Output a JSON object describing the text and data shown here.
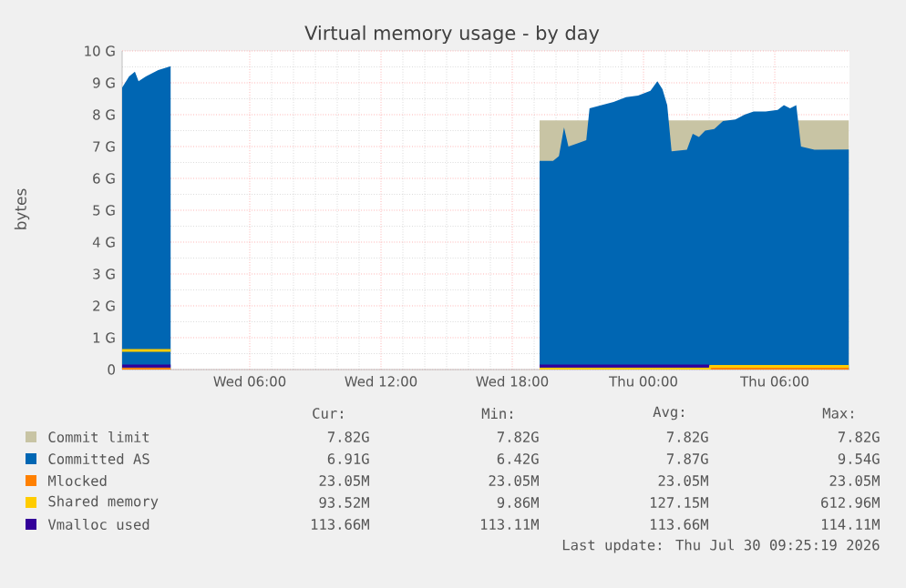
{
  "chart_data": {
    "type": "area",
    "title": "Virtual memory usage - by day",
    "ylabel": "bytes",
    "xlim": [
      "2026-07-29T00:10",
      "2026-07-30T09:25"
    ],
    "ylim": [
      0,
      10
    ],
    "xticks": [
      {
        "value": "2026-07-29T06:00",
        "label": "Wed 06:00"
      },
      {
        "value": "2026-07-29T12:00",
        "label": "Wed 12:00"
      },
      {
        "value": "2026-07-29T18:00",
        "label": "Wed 18:00"
      },
      {
        "value": "2026-07-30T00:00",
        "label": "Thu 00:00"
      },
      {
        "value": "2026-07-30T06:00",
        "label": "Thu 06:00"
      }
    ],
    "yticks": [
      0,
      {
        "value": 1,
        "label": "1 G"
      },
      {
        "value": 2,
        "label": "2 G"
      },
      {
        "value": 3,
        "label": "3 G"
      },
      {
        "value": 4,
        "label": "4 G"
      },
      {
        "value": 5,
        "label": "5 G"
      },
      {
        "value": 6,
        "label": "6 G"
      },
      {
        "value": 7,
        "label": "7 G"
      },
      {
        "value": 8,
        "label": "8 G"
      },
      {
        "value": 9,
        "label": "9 G"
      },
      {
        "value": 10,
        "label": "10 G"
      }
    ],
    "grid": true,
    "legend": "bottom",
    "series": [
      {
        "name": "Commit limit",
        "color": "#c8c4a4",
        "x": [
          "2026-07-29T19:15",
          "2026-07-30T09:23"
        ],
        "values": [
          7.82,
          7.82
        ]
      },
      {
        "name": "Committed AS",
        "color": "#0066b3",
        "x": [
          "2026-07-29T00:10",
          "2026-07-29T00:29",
          "2026-07-29T00:45",
          "2026-07-29T00:55",
          "2026-07-29T01:15",
          "2026-07-29T01:49",
          "2026-07-29T02:23",
          "2026-07-29T10:00",
          "2026-07-29T19:15",
          "2026-07-29T19:52",
          "2026-07-29T20:08",
          "2026-07-29T20:22",
          "2026-07-29T20:34",
          "2026-07-29T20:59",
          "2026-07-29T21:23",
          "2026-07-29T21:32",
          "2026-07-29T22:05",
          "2026-07-29T22:38",
          "2026-07-29T23:12",
          "2026-07-29T23:45",
          "2026-07-30T00:19",
          "2026-07-30T00:38",
          "2026-07-30T00:52",
          "2026-07-30T01:05",
          "2026-07-30T01:17",
          "2026-07-30T01:59",
          "2026-07-30T02:15",
          "2026-07-30T02:32",
          "2026-07-30T02:49",
          "2026-07-30T03:14",
          "2026-07-30T03:38",
          "2026-07-30T04:12",
          "2026-07-30T04:37",
          "2026-07-30T05:02",
          "2026-07-30T05:35",
          "2026-07-30T06:08",
          "2026-07-30T06:25",
          "2026-07-30T06:42",
          "2026-07-30T06:59",
          "2026-07-30T07:12",
          "2026-07-30T07:49",
          "2026-07-30T09:23"
        ],
        "values": [
          8.85,
          9.2,
          9.35,
          9.05,
          9.2,
          9.4,
          9.52,
          null,
          6.55,
          6.55,
          6.7,
          7.6,
          7.0,
          7.1,
          7.2,
          8.2,
          8.3,
          8.4,
          8.55,
          8.6,
          8.75,
          9.05,
          8.8,
          8.3,
          6.85,
          6.9,
          7.4,
          7.3,
          7.5,
          7.55,
          7.8,
          7.85,
          8.0,
          8.1,
          8.1,
          8.15,
          8.3,
          8.2,
          8.3,
          7.0,
          6.9,
          6.91
        ]
      },
      {
        "name": "Mlocked",
        "color": "#ff8000",
        "type": "line",
        "x": [
          "2026-07-29T00:10",
          "2026-07-29T02:23",
          "2026-07-29T10:00",
          "2026-07-29T19:15",
          "2026-07-30T09:23"
        ],
        "values": [
          0.02,
          0.02,
          null,
          0.02,
          0.02
        ]
      },
      {
        "name": "Shared memory",
        "color": "#ffcc00",
        "type": "line",
        "x": [
          "2026-07-29T00:10",
          "2026-07-29T02:23",
          "2026-07-29T10:00",
          "2026-07-29T19:15",
          "2026-07-30T03:00",
          "2026-07-30T03:03",
          "2026-07-30T09:23"
        ],
        "values": [
          0.6,
          0.6,
          null,
          0.01,
          0.01,
          0.1,
          0.1
        ]
      },
      {
        "name": "Vmalloc used",
        "color": "#330099",
        "type": "line",
        "x": [
          "2026-07-29T00:10",
          "2026-07-29T02:23",
          "2026-07-29T10:00",
          "2026-07-29T19:15",
          "2026-07-30T03:00"
        ],
        "values": [
          0.11,
          0.11,
          null,
          0.11,
          0.11
        ]
      }
    ],
    "annotations": [
      "Cur:",
      "Min:",
      "Avg:",
      "Max:",
      "7.82G",
      "7.82G",
      "7.82G",
      "7.82G",
      "6.91G",
      "6.42G",
      "7.87G",
      "9.54G",
      "23.05M",
      "23.05M",
      "23.05M",
      "23.05M",
      "93.52M",
      "9.86M",
      "127.15M",
      "612.96M",
      "113.66M",
      "113.11M",
      "113.66M",
      "114.11M",
      "Last update: Thu Jul 30 09:25:19 2026"
    ]
  }
}
